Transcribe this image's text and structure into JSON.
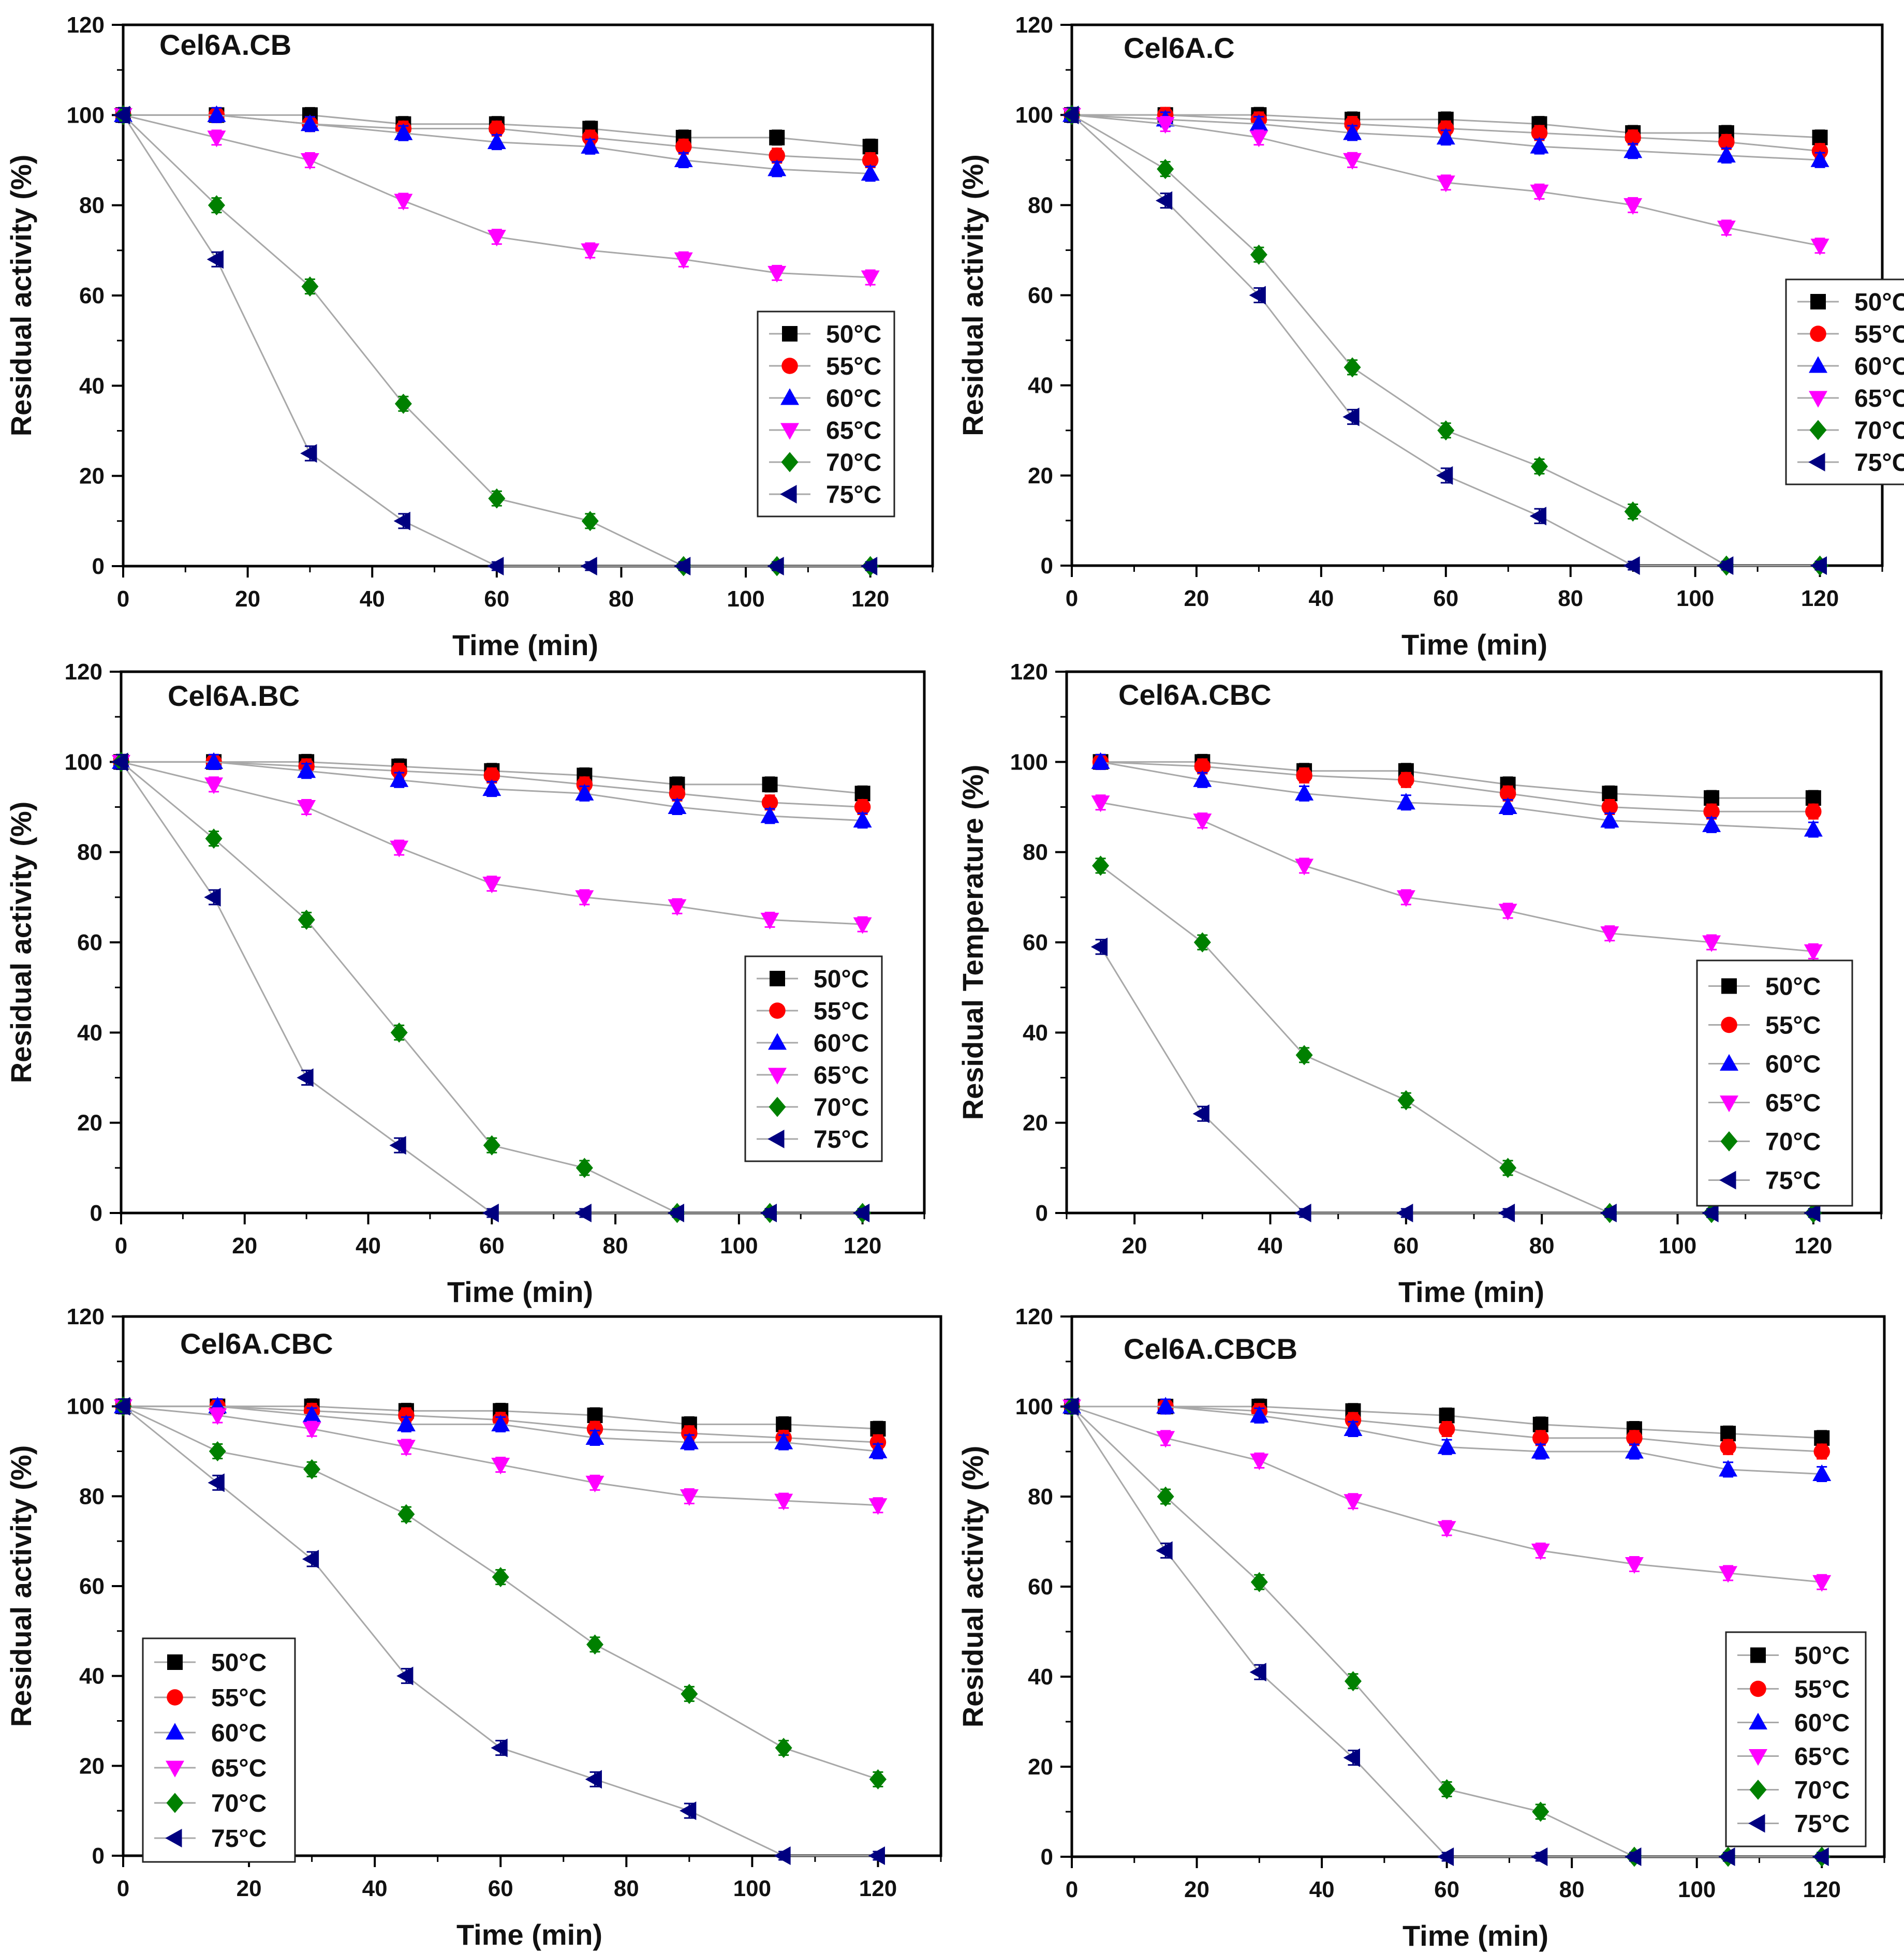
{
  "figure": {
    "xlabel": "Time (min)",
    "series_names": [
      "50°C",
      "55°C",
      "60°C",
      "65°C",
      "70°C",
      "75°C"
    ],
    "series_colors": [
      "#000000",
      "#ff0000",
      "#0000ff",
      "#ff00ff",
      "#008000",
      "#000080"
    ],
    "series_markers": [
      "square",
      "circle",
      "triangle-up",
      "triangle-down",
      "diamond",
      "triangle-left"
    ]
  },
  "chart_data": [
    {
      "type": "line",
      "title": "Cel6A.CB",
      "xlabel": "Time (min)",
      "ylabel": "Residual activity (%)",
      "xlim": [
        0,
        130
      ],
      "ylim": [
        0,
        120
      ],
      "xticks": [
        0,
        20,
        40,
        60,
        80,
        100,
        120
      ],
      "yticks": [
        0,
        20,
        40,
        60,
        80,
        100,
        120
      ],
      "legend": "right-middle",
      "x": [
        0,
        15,
        30,
        45,
        60,
        75,
        90,
        105,
        120
      ],
      "series": [
        {
          "name": "50°C",
          "values": [
            100,
            100,
            100,
            98,
            98,
            97,
            95,
            95,
            93
          ]
        },
        {
          "name": "55°C",
          "values": [
            100,
            100,
            98,
            97,
            97,
            95,
            93,
            91,
            90
          ]
        },
        {
          "name": "60°C",
          "values": [
            100,
            100,
            98,
            96,
            94,
            93,
            90,
            88,
            87
          ]
        },
        {
          "name": "65°C",
          "values": [
            100,
            95,
            90,
            81,
            73,
            70,
            68,
            65,
            64
          ]
        },
        {
          "name": "70°C",
          "values": [
            100,
            80,
            62,
            36,
            15,
            10,
            0,
            0,
            0
          ]
        },
        {
          "name": "75°C",
          "values": [
            100,
            68,
            25,
            10,
            0,
            0,
            0,
            0,
            0
          ]
        }
      ]
    },
    {
      "type": "line",
      "title": "Cel6A.C",
      "xlabel": "Time (min)",
      "ylabel": "Residual activity (%)",
      "xlim": [
        0,
        130
      ],
      "ylim": [
        0,
        120
      ],
      "xticks": [
        0,
        20,
        40,
        60,
        80,
        100,
        120
      ],
      "yticks": [
        0,
        20,
        40,
        60,
        80,
        100,
        120
      ],
      "legend": "right-middle",
      "x": [
        0,
        15,
        30,
        45,
        60,
        75,
        90,
        105,
        120
      ],
      "series": [
        {
          "name": "50°C",
          "values": [
            100,
            100,
            100,
            99,
            99,
            98,
            96,
            96,
            95
          ]
        },
        {
          "name": "55°C",
          "values": [
            100,
            100,
            99,
            98,
            97,
            96,
            95,
            94,
            92
          ]
        },
        {
          "name": "60°C",
          "values": [
            100,
            99,
            98,
            96,
            95,
            93,
            92,
            91,
            90
          ]
        },
        {
          "name": "65°C",
          "values": [
            100,
            98,
            95,
            90,
            85,
            83,
            80,
            75,
            71
          ]
        },
        {
          "name": "70°C",
          "values": [
            100,
            88,
            69,
            44,
            30,
            22,
            12,
            0,
            0
          ]
        },
        {
          "name": "75°C",
          "values": [
            100,
            81,
            60,
            33,
            20,
            11,
            0,
            0,
            0
          ]
        }
      ]
    },
    {
      "type": "line",
      "title": "Cel6A.BC",
      "xlabel": "Time (min)",
      "ylabel": "Residual activity (%)",
      "xlim": [
        0,
        130
      ],
      "ylim": [
        0,
        120
      ],
      "xticks": [
        0,
        20,
        40,
        60,
        80,
        100,
        120
      ],
      "yticks": [
        0,
        20,
        40,
        60,
        80,
        100,
        120
      ],
      "legend": "right-middle",
      "x": [
        0,
        15,
        30,
        45,
        60,
        75,
        90,
        105,
        120
      ],
      "series": [
        {
          "name": "50°C",
          "values": [
            100,
            100,
            100,
            99,
            98,
            97,
            95,
            95,
            93
          ]
        },
        {
          "name": "55°C",
          "values": [
            100,
            100,
            99,
            98,
            97,
            95,
            93,
            91,
            90
          ]
        },
        {
          "name": "60°C",
          "values": [
            100,
            100,
            98,
            96,
            94,
            93,
            90,
            88,
            87
          ]
        },
        {
          "name": "65°C",
          "values": [
            100,
            95,
            90,
            81,
            73,
            70,
            68,
            65,
            64
          ]
        },
        {
          "name": "70°C",
          "values": [
            100,
            83,
            65,
            40,
            15,
            10,
            0,
            0,
            0
          ]
        },
        {
          "name": "75°C",
          "values": [
            100,
            70,
            30,
            15,
            0,
            0,
            0,
            0,
            0
          ]
        }
      ]
    },
    {
      "type": "line",
      "title": "Cel6A.CBC",
      "xlabel": "Time (min)",
      "ylabel": "Residual Temperature (%)",
      "xlim": [
        10,
        130
      ],
      "ylim": [
        0,
        120
      ],
      "xticks": [
        20,
        40,
        60,
        80,
        100,
        120
      ],
      "yticks": [
        0,
        20,
        40,
        60,
        80,
        100,
        120
      ],
      "legend": "right-lower",
      "x": [
        15,
        30,
        45,
        60,
        75,
        90,
        105,
        120
      ],
      "series": [
        {
          "name": "50°C",
          "values": [
            100,
            100,
            98,
            98,
            95,
            93,
            92,
            92
          ]
        },
        {
          "name": "55°C",
          "values": [
            100,
            99,
            97,
            96,
            93,
            90,
            89,
            89
          ]
        },
        {
          "name": "60°C",
          "values": [
            100,
            96,
            93,
            91,
            90,
            87,
            86,
            85
          ]
        },
        {
          "name": "65°C",
          "values": [
            91,
            87,
            77,
            70,
            67,
            62,
            60,
            58
          ]
        },
        {
          "name": "70°C",
          "values": [
            77,
            60,
            35,
            25,
            10,
            0,
            0,
            0
          ]
        },
        {
          "name": "75°C",
          "values": [
            59,
            22,
            0,
            0,
            0,
            0,
            0,
            0
          ]
        }
      ]
    },
    {
      "type": "line",
      "title": "Cel6A.CBC",
      "xlabel": "Time (min)",
      "ylabel": "Residual activity (%)",
      "xlim": [
        0,
        130
      ],
      "ylim": [
        0,
        120
      ],
      "xticks": [
        0,
        20,
        40,
        60,
        80,
        100,
        120
      ],
      "yticks": [
        0,
        20,
        40,
        60,
        80,
        100,
        120
      ],
      "legend": "left-lower",
      "x": [
        0,
        15,
        30,
        45,
        60,
        75,
        90,
        105,
        120
      ],
      "series": [
        {
          "name": "50°C",
          "values": [
            100,
            100,
            100,
            99,
            99,
            98,
            96,
            96,
            95
          ]
        },
        {
          "name": "55°C",
          "values": [
            100,
            100,
            99,
            98,
            97,
            95,
            94,
            93,
            92
          ]
        },
        {
          "name": "60°C",
          "values": [
            100,
            100,
            98,
            96,
            96,
            93,
            92,
            92,
            90
          ]
        },
        {
          "name": "65°C",
          "values": [
            100,
            98,
            95,
            91,
            87,
            83,
            80,
            79,
            78
          ]
        },
        {
          "name": "70°C",
          "values": [
            100,
            90,
            86,
            76,
            62,
            47,
            36,
            24,
            17
          ]
        },
        {
          "name": "75°C",
          "values": [
            100,
            83,
            66,
            40,
            24,
            17,
            10,
            0,
            0
          ]
        }
      ]
    },
    {
      "type": "line",
      "title": "Cel6A.CBCB",
      "xlabel": "Time (min)",
      "ylabel": "Residual activity (%)",
      "xlim": [
        0,
        130
      ],
      "ylim": [
        0,
        120
      ],
      "xticks": [
        0,
        20,
        40,
        60,
        80,
        100,
        120
      ],
      "yticks": [
        0,
        20,
        40,
        60,
        80,
        100,
        120
      ],
      "legend": "right-lower",
      "x": [
        0,
        15,
        30,
        45,
        60,
        75,
        90,
        105,
        120
      ],
      "series": [
        {
          "name": "50°C",
          "values": [
            100,
            100,
            100,
            99,
            98,
            96,
            95,
            94,
            93
          ]
        },
        {
          "name": "55°C",
          "values": [
            100,
            100,
            99,
            97,
            95,
            93,
            93,
            91,
            90
          ]
        },
        {
          "name": "60°C",
          "values": [
            100,
            100,
            98,
            95,
            91,
            90,
            90,
            86,
            85
          ]
        },
        {
          "name": "65°C",
          "values": [
            100,
            93,
            88,
            79,
            73,
            68,
            65,
            63,
            61
          ]
        },
        {
          "name": "70°C",
          "values": [
            100,
            80,
            61,
            39,
            15,
            10,
            0,
            0,
            0
          ]
        },
        {
          "name": "75°C",
          "values": [
            100,
            68,
            41,
            22,
            0,
            0,
            0,
            0,
            0
          ]
        }
      ]
    }
  ]
}
